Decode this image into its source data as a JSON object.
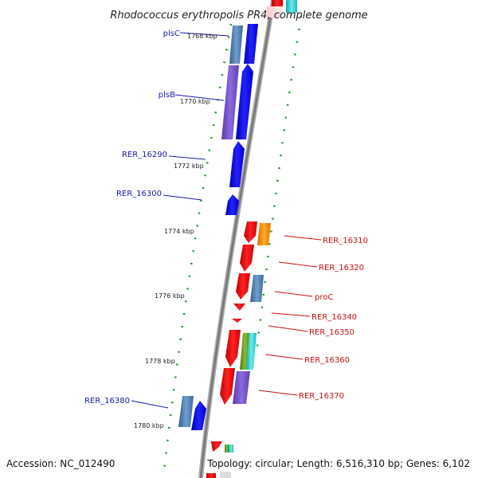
{
  "map": {
    "title": "Rhodococcus erythropolis PR4, complete genome",
    "accession": "Accession: NC_012490",
    "topology": "Topology: circular; Length: 6,516,310 bp; Genes: 6,102"
  },
  "ticks": [
    "1768 kbp",
    "1770 kbp",
    "1772 kbp",
    "1774 kbp",
    "1776 kbp",
    "1778 kbp",
    "1780 kbp"
  ],
  "genes_left": [
    "plsC",
    "plsB",
    "RER_16290",
    "RER_16300",
    "RER_16380"
  ],
  "genes_right": [
    "RER_16310",
    "RER_16320",
    "proC",
    "RER_16340",
    "RER_16350",
    "RER_16360",
    "RER_16370"
  ],
  "colors": {
    "forward": "#0000ee",
    "reverse": "#ee0000",
    "steelblue": "#4477aa",
    "purple": "#7755cc",
    "orange": "#ff8800",
    "cyan": "#22cccc",
    "olive": "#669922",
    "tick_green": "#229922",
    "backbone": "#888888"
  }
}
